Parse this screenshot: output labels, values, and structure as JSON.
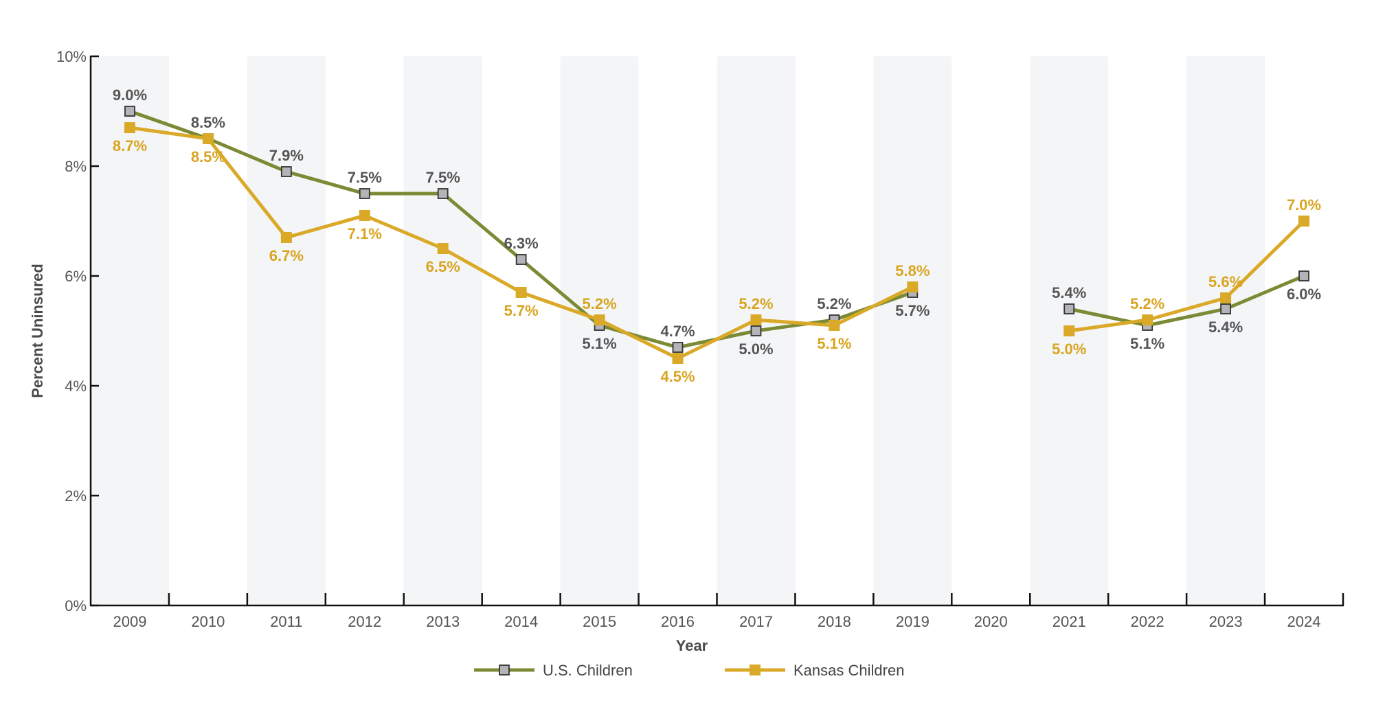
{
  "chart_data": {
    "type": "line",
    "title": "",
    "xlabel": "Year",
    "ylabel": "Percent Uninsured",
    "categories": [
      "2009",
      "2010",
      "2011",
      "2012",
      "2013",
      "2014",
      "2015",
      "2016",
      "2017",
      "2018",
      "2019",
      "2020",
      "2021",
      "2022",
      "2023",
      "2024"
    ],
    "ylim": [
      0,
      10
    ],
    "yticks": [
      0,
      2,
      4,
      6,
      8,
      10
    ],
    "ytick_labels": [
      "0%",
      "2%",
      "4%",
      "6%",
      "8%",
      "10%"
    ],
    "grid": false,
    "alternating_bands": true,
    "legend_position": "bottom-center",
    "series": [
      {
        "name": "U.S. Children",
        "line_color": "#7B8B35",
        "marker_fill": "#B3B3B8",
        "marker_stroke": "#333333",
        "label_color": "#555555",
        "values": [
          9.0,
          8.5,
          7.9,
          7.5,
          7.5,
          6.3,
          5.1,
          4.7,
          5.0,
          5.2,
          5.7,
          null,
          5.4,
          5.1,
          5.4,
          6.0
        ],
        "labels": [
          "9.0%",
          "8.5%",
          "7.9%",
          "7.5%",
          "7.5%",
          "6.3%",
          "5.1%",
          "4.7%",
          "5.0%",
          "5.2%",
          "5.7%",
          null,
          "5.4%",
          "5.1%",
          "5.4%",
          "6.0%"
        ],
        "label_side": [
          "above",
          "above",
          "above",
          "above",
          "above",
          "above",
          "below",
          "above",
          "below",
          "above",
          "below",
          null,
          "above",
          "below",
          "below",
          "below"
        ]
      },
      {
        "name": "Kansas Children",
        "line_color": "#DAA927",
        "marker_fill": "#DAA927",
        "marker_stroke": "#DAA927",
        "label_color": "#D9A520",
        "values": [
          8.7,
          8.5,
          6.7,
          7.1,
          6.5,
          5.7,
          5.2,
          4.5,
          5.2,
          5.1,
          5.8,
          null,
          5.0,
          5.2,
          5.6,
          7.0
        ],
        "labels": [
          "8.7%",
          "8.5%",
          "6.7%",
          "7.1%",
          "6.5%",
          "5.7%",
          "5.2%",
          "4.5%",
          "5.2%",
          "5.1%",
          "5.8%",
          null,
          "5.0%",
          "5.2%",
          "5.6%",
          "7.0%"
        ],
        "label_side": [
          "below",
          "below",
          "below",
          "below",
          "below",
          "below",
          "above",
          "below",
          "above",
          "below",
          "above",
          null,
          "below",
          "above",
          "above",
          "above"
        ]
      }
    ]
  },
  "colors": {
    "band": "#F4F5F7",
    "axis": "#111111"
  }
}
